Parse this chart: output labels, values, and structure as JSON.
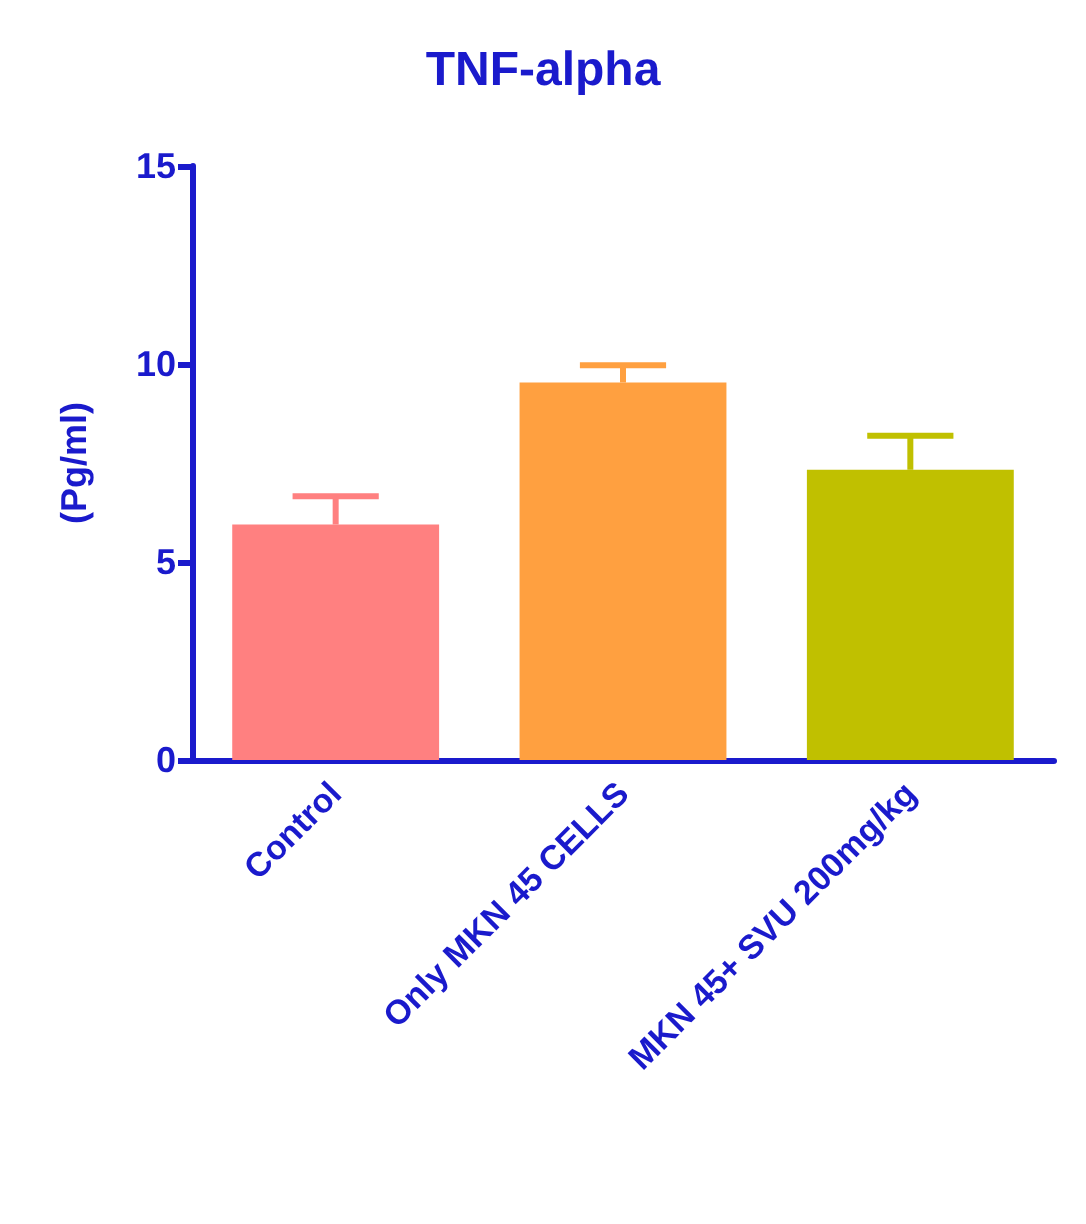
{
  "chart_data": {
    "type": "bar",
    "title": "TNF-alpha",
    "ylabel": "(Pg/ml)",
    "categories": [
      "Control",
      "Only MKN 45 CELLS",
      "MKN 45+ SVU 200mg/kg"
    ],
    "values": [
      5.95,
      9.53,
      7.33
    ],
    "colors": [
      "#ff8080",
      "#ffa040",
      "#c0c000"
    ],
    "errors": [
      [
        5.95,
        6.66
      ],
      [
        9.53,
        9.97
      ],
      [
        7.33,
        8.19
      ]
    ],
    "ylim": [
      0,
      15
    ],
    "yticks": [
      0,
      5,
      10,
      15
    ],
    "grid": false
  }
}
